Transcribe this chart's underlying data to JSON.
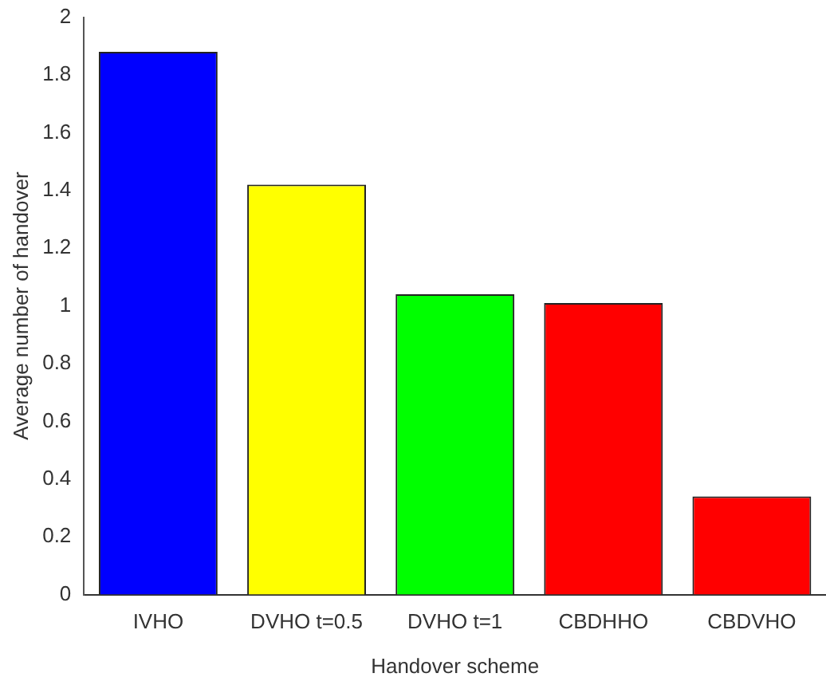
{
  "chart_data": {
    "type": "bar",
    "xlabel": "Handover scheme",
    "ylabel": "Average number of handover",
    "categories": [
      "IVHO",
      "DVHO t=0.5",
      "DVHO t=1",
      "CBDHHO",
      "CBDVHO"
    ],
    "values": [
      1.88,
      1.42,
      1.04,
      1.01,
      0.34
    ],
    "colors": [
      "#0000ff",
      "#ffff00",
      "#00ff00",
      "#ff0000",
      "#ff0000"
    ],
    "ylim": [
      0,
      2
    ],
    "yticks": [
      0,
      0.2,
      0.4,
      0.6,
      0.8,
      1,
      1.2,
      1.4,
      1.6,
      1.8,
      2
    ],
    "grid": false,
    "legend": false
  }
}
